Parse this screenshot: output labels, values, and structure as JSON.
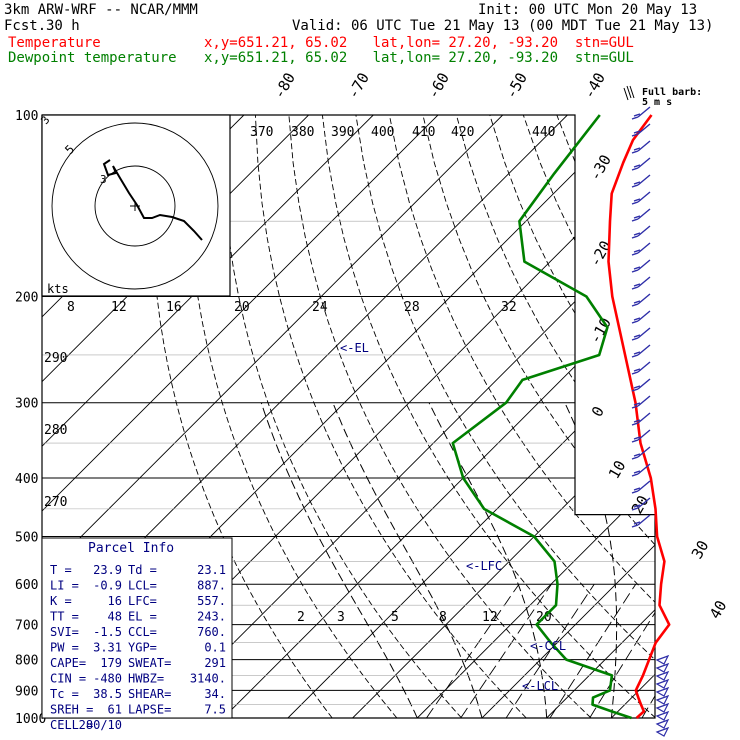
{
  "header": {
    "model": "3km ARW-WRF -- NCAR/MMM",
    "fcst_label": "Fcst.",
    "fcst_value": "30 h",
    "init": "Init: 00 UTC Mon 20 May 13",
    "valid": "Valid: 06 UTC Tue 21 May 13 (00 MDT Tue 21 May 13)",
    "temp_label": "Temperature",
    "temp_loc": "x,y=651.21, 65.02   lat,lon= 27.20, -93.20  stn=GUL",
    "dew_label": "Dewpoint temperature",
    "dew_loc": "x,y=651.21, 65.02   lat,lon= 27.20, -93.20  stn=GUL"
  },
  "colors": {
    "temperature": "#ff0000",
    "dewpoint": "#008000",
    "text_blue": "#000080",
    "wind_barb": "#2e2ea8"
  },
  "chart_data": {
    "type": "line",
    "subtype": "skew-T log-p",
    "pressure_ticks": [
      100,
      200,
      300,
      400,
      500,
      600,
      700,
      800,
      900,
      1000
    ],
    "isotherm_labels": [
      -80,
      -70,
      -60,
      -50,
      -40,
      -30,
      -20,
      -10,
      0,
      10,
      20,
      30,
      40
    ],
    "theta_e_labels": [
      370,
      380,
      390,
      400,
      410,
      420,
      440
    ],
    "theta_labels": [
      290,
      280,
      270
    ],
    "mixing_ratio_labels": [
      2,
      3,
      5,
      8,
      12,
      20
    ],
    "hodo_speed_labels": [
      8,
      12,
      16,
      20,
      24,
      28,
      32
    ],
    "hodo_ring_label": "5",
    "hodo_unit_label": "kts",
    "barb_legend": "Full barb:\n5 m s",
    "levels_label_el": "<-EL",
    "levels_label_lfc": "<-LFC",
    "levels_label_ccl": "<-CCL",
    "levels_label_lcl": "<-LCL",
    "series": [
      {
        "name": "Temperature",
        "points": [
          [
            1000,
            23.9
          ],
          [
            975,
            24
          ],
          [
            950,
            22.5
          ],
          [
            925,
            21
          ],
          [
            900,
            19.5
          ],
          [
            850,
            18.3
          ],
          [
            800,
            16.8
          ],
          [
            750,
            15.2
          ],
          [
            700,
            14.5
          ],
          [
            650,
            10
          ],
          [
            600,
            7
          ],
          [
            550,
            4
          ],
          [
            500,
            -1
          ],
          [
            450,
            -5.5
          ],
          [
            400,
            -11
          ],
          [
            350,
            -18
          ],
          [
            300,
            -25
          ],
          [
            250,
            -34
          ],
          [
            200,
            -45
          ],
          [
            175,
            -51
          ],
          [
            150,
            -57
          ],
          [
            135,
            -61
          ],
          [
            120,
            -64
          ],
          [
            110,
            -66
          ],
          [
            100,
            -67
          ]
        ]
      },
      {
        "name": "Dewpoint temperature",
        "points": [
          [
            1000,
            23.1
          ],
          [
            975,
            19
          ],
          [
            950,
            15
          ],
          [
            925,
            14
          ],
          [
            900,
            15.5
          ],
          [
            850,
            13.5
          ],
          [
            800,
            4
          ],
          [
            750,
            -1
          ],
          [
            700,
            -6
          ],
          [
            650,
            -6
          ],
          [
            600,
            -9
          ],
          [
            550,
            -13
          ],
          [
            500,
            -20
          ],
          [
            450,
            -32
          ],
          [
            400,
            -40
          ],
          [
            350,
            -47
          ],
          [
            300,
            -45
          ],
          [
            275,
            -46
          ],
          [
            250,
            -38
          ],
          [
            225,
            -41
          ],
          [
            200,
            -49
          ],
          [
            175,
            -64
          ],
          [
            150,
            -71
          ],
          [
            125,
            -73
          ],
          [
            100,
            -75
          ]
        ]
      }
    ]
  },
  "parcel_info": {
    "title": "Parcel Info",
    "rows": [
      [
        "T  =",
        "23.9",
        "Td =",
        "23.1"
      ],
      [
        "LI =",
        "-0.9",
        "LCL=",
        "887."
      ],
      [
        "K  =",
        "16",
        "LFC=",
        "557."
      ],
      [
        "TT =",
        "48",
        "EL =",
        "243."
      ],
      [
        "SVI=",
        "-1.5",
        "CCL=",
        "760."
      ],
      [
        "PW =",
        "3.31",
        "YGP=",
        "0.1"
      ],
      [
        "CAPE=",
        "179",
        "SWEAT=",
        "291"
      ],
      [
        "CIN =",
        "-480",
        "HWBZ=",
        "3140."
      ],
      [
        "Tc  =",
        "38.5",
        "SHEAR=",
        "34."
      ],
      [
        "SREH =",
        "61",
        "LAPSE=",
        "7.5"
      ],
      [
        "CELL =",
        "280/10",
        "",
        ""
      ]
    ]
  }
}
